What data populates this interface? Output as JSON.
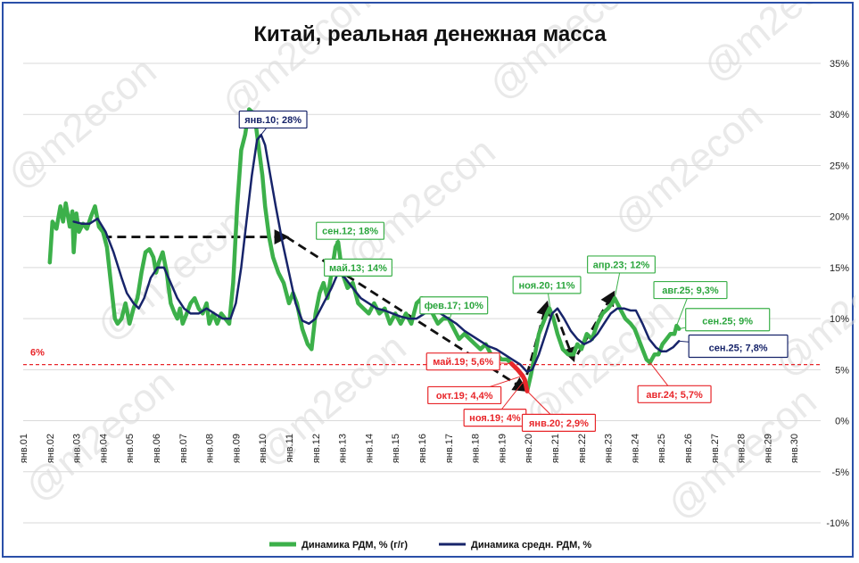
{
  "chart_data": {
    "type": "line",
    "title": "Китай, реальная денежная масса",
    "ylim": [
      -10,
      35
    ],
    "yticks": [
      35,
      30,
      25,
      20,
      15,
      10,
      5,
      0,
      -5,
      -10
    ],
    "ytick_labels": [
      "35%",
      "30%",
      "25%",
      "20%",
      "15%",
      "10%",
      "5%",
      "0%",
      "-5%",
      "-10%"
    ],
    "xlim": [
      2001.0,
      2031.0
    ],
    "xticks": [
      2001,
      2002,
      2003,
      2004,
      2005,
      2006,
      2007,
      2008,
      2009,
      2010,
      2011,
      2012,
      2013,
      2014,
      2015,
      2016,
      2017,
      2018,
      2019,
      2020,
      2021,
      2022,
      2023,
      2024,
      2025,
      2026,
      2027,
      2028,
      2029,
      2030
    ],
    "xtick_labels": [
      "янв.01",
      "янв.02",
      "янв.03",
      "янв.04",
      "янв.05",
      "янв.06",
      "янв.07",
      "янв.08",
      "янв.09",
      "янв.10",
      "янв.11",
      "янв.12",
      "янв.13",
      "янв.14",
      "янв.15",
      "янв.16",
      "янв.17",
      "янв.18",
      "янв.19",
      "янв.20",
      "янв.21",
      "янв.22",
      "янв.23",
      "янв.24",
      "янв.25",
      "янв.26",
      "янв.27",
      "янв.28",
      "янв.29",
      "янв.30"
    ],
    "threshold": {
      "value": 5.5,
      "label": "6%",
      "color": "#e8262a"
    },
    "series": [
      {
        "name": "Динамика РДМ, % (г/г)",
        "color": "#3cb04a",
        "points": [
          [
            2002.0,
            15.5
          ],
          [
            2002.1,
            19.5
          ],
          [
            2002.25,
            18.8
          ],
          [
            2002.4,
            21.0
          ],
          [
            2002.5,
            19.5
          ],
          [
            2002.6,
            21.3
          ],
          [
            2002.75,
            19.0
          ],
          [
            2002.85,
            20.5
          ],
          [
            2002.9,
            16.5
          ],
          [
            2003.0,
            20.3
          ],
          [
            2003.1,
            18.5
          ],
          [
            2003.25,
            19.3
          ],
          [
            2003.4,
            18.8
          ],
          [
            2003.55,
            20.0
          ],
          [
            2003.7,
            21.0
          ],
          [
            2003.85,
            19.0
          ],
          [
            2004.0,
            18.5
          ],
          [
            2004.15,
            17.0
          ],
          [
            2004.3,
            13.5
          ],
          [
            2004.45,
            10.0
          ],
          [
            2004.55,
            9.5
          ],
          [
            2004.7,
            10.0
          ],
          [
            2004.85,
            11.5
          ],
          [
            2005.0,
            9.5
          ],
          [
            2005.15,
            11.0
          ],
          [
            2005.3,
            12.0
          ],
          [
            2005.45,
            14.5
          ],
          [
            2005.6,
            16.5
          ],
          [
            2005.75,
            16.8
          ],
          [
            2005.9,
            16.0
          ],
          [
            2006.0,
            14.5
          ],
          [
            2006.1,
            15.5
          ],
          [
            2006.25,
            16.5
          ],
          [
            2006.4,
            14.5
          ],
          [
            2006.55,
            11.5
          ],
          [
            2006.7,
            10.5
          ],
          [
            2006.8,
            10.0
          ],
          [
            2006.9,
            11.0
          ],
          [
            2007.0,
            9.5
          ],
          [
            2007.15,
            10.5
          ],
          [
            2007.3,
            11.5
          ],
          [
            2007.45,
            12.0
          ],
          [
            2007.6,
            11.0
          ],
          [
            2007.75,
            10.5
          ],
          [
            2007.9,
            11.5
          ],
          [
            2008.0,
            9.5
          ],
          [
            2008.15,
            10.5
          ],
          [
            2008.3,
            9.5
          ],
          [
            2008.45,
            10.5
          ],
          [
            2008.6,
            10.0
          ],
          [
            2008.75,
            9.5
          ],
          [
            2008.9,
            13.5
          ],
          [
            2009.05,
            21.0
          ],
          [
            2009.2,
            26.5
          ],
          [
            2009.35,
            28.0
          ],
          [
            2009.5,
            30.5
          ],
          [
            2009.7,
            30.0
          ],
          [
            2009.85,
            27.0
          ],
          [
            2010.0,
            24.0
          ],
          [
            2010.1,
            21.0
          ],
          [
            2010.25,
            18.0
          ],
          [
            2010.4,
            16.0
          ],
          [
            2010.6,
            14.5
          ],
          [
            2010.8,
            13.5
          ],
          [
            2011.0,
            11.5
          ],
          [
            2011.15,
            12.5
          ],
          [
            2011.3,
            11.5
          ],
          [
            2011.5,
            9.0
          ],
          [
            2011.7,
            7.5
          ],
          [
            2011.85,
            7.0
          ],
          [
            2012.0,
            10.5
          ],
          [
            2012.15,
            12.5
          ],
          [
            2012.3,
            13.5
          ],
          [
            2012.45,
            12.0
          ],
          [
            2012.6,
            14.5
          ],
          [
            2012.75,
            17.0
          ],
          [
            2012.85,
            17.5
          ],
          [
            2013.0,
            14.5
          ],
          [
            2013.2,
            13.0
          ],
          [
            2013.4,
            13.5
          ],
          [
            2013.6,
            11.5
          ],
          [
            2013.8,
            11.0
          ],
          [
            2014.0,
            10.5
          ],
          [
            2014.2,
            11.5
          ],
          [
            2014.4,
            10.5
          ],
          [
            2014.6,
            11.0
          ],
          [
            2014.8,
            9.5
          ],
          [
            2015.0,
            10.5
          ],
          [
            2015.2,
            9.5
          ],
          [
            2015.4,
            10.5
          ],
          [
            2015.6,
            9.5
          ],
          [
            2015.8,
            11.5
          ],
          [
            2016.0,
            12.0
          ],
          [
            2016.2,
            11.5
          ],
          [
            2016.4,
            10.5
          ],
          [
            2016.6,
            9.5
          ],
          [
            2016.8,
            10.0
          ],
          [
            2017.0,
            10.0
          ],
          [
            2017.2,
            9.0
          ],
          [
            2017.4,
            8.0
          ],
          [
            2017.6,
            8.5
          ],
          [
            2017.8,
            8.0
          ],
          [
            2018.0,
            7.5
          ],
          [
            2018.2,
            7.0
          ],
          [
            2018.4,
            7.5
          ],
          [
            2018.6,
            6.5
          ],
          [
            2018.8,
            6.5
          ],
          [
            2019.0,
            6.0
          ],
          [
            2019.2,
            6.0
          ],
          [
            2019.37,
            5.6
          ],
          [
            2019.6,
            5.0
          ],
          [
            2019.79,
            4.4
          ],
          [
            2019.87,
            4.0
          ],
          [
            2019.96,
            2.9
          ],
          [
            2020.1,
            4.5
          ],
          [
            2020.25,
            6.5
          ],
          [
            2020.4,
            8.5
          ],
          [
            2020.55,
            9.5
          ],
          [
            2020.7,
            10.5
          ],
          [
            2020.8,
            11.0
          ],
          [
            2020.95,
            10.0
          ],
          [
            2021.1,
            8.5
          ],
          [
            2021.3,
            7.0
          ],
          [
            2021.5,
            6.5
          ],
          [
            2021.7,
            6.5
          ],
          [
            2021.85,
            7.5
          ],
          [
            2022.0,
            7.0
          ],
          [
            2022.2,
            8.5
          ],
          [
            2022.4,
            8.0
          ],
          [
            2022.6,
            9.5
          ],
          [
            2022.8,
            10.5
          ],
          [
            2023.0,
            11.0
          ],
          [
            2023.15,
            11.5
          ],
          [
            2023.25,
            12.0
          ],
          [
            2023.45,
            11.0
          ],
          [
            2023.65,
            10.0
          ],
          [
            2023.85,
            9.5
          ],
          [
            2024.0,
            9.0
          ],
          [
            2024.15,
            8.0
          ],
          [
            2024.3,
            7.0
          ],
          [
            2024.45,
            6.0
          ],
          [
            2024.58,
            5.7
          ],
          [
            2024.75,
            6.5
          ],
          [
            2024.9,
            6.5
          ],
          [
            2025.05,
            7.5
          ],
          [
            2025.2,
            8.0
          ],
          [
            2025.35,
            8.5
          ],
          [
            2025.5,
            8.5
          ],
          [
            2025.58,
            9.3
          ],
          [
            2025.67,
            9.0
          ]
        ]
      },
      {
        "name": "Динамика средн. РДМ, %",
        "color": "#17246a",
        "points": [
          [
            2002.9,
            19.5
          ],
          [
            2003.2,
            19.3
          ],
          [
            2003.5,
            19.3
          ],
          [
            2003.8,
            19.8
          ],
          [
            2004.1,
            18.5
          ],
          [
            2004.4,
            16.5
          ],
          [
            2004.7,
            14.0
          ],
          [
            2004.9,
            12.5
          ],
          [
            2005.15,
            11.5
          ],
          [
            2005.35,
            11.0
          ],
          [
            2005.55,
            12.0
          ],
          [
            2005.8,
            14.0
          ],
          [
            2006.05,
            15.0
          ],
          [
            2006.3,
            15.0
          ],
          [
            2006.55,
            13.5
          ],
          [
            2006.8,
            12.0
          ],
          [
            2007.05,
            11.0
          ],
          [
            2007.3,
            10.5
          ],
          [
            2007.6,
            10.5
          ],
          [
            2007.9,
            11.0
          ],
          [
            2008.2,
            10.5
          ],
          [
            2008.5,
            10.0
          ],
          [
            2008.8,
            10.0
          ],
          [
            2009.0,
            11.5
          ],
          [
            2009.2,
            15.0
          ],
          [
            2009.4,
            19.5
          ],
          [
            2009.6,
            24.0
          ],
          [
            2009.8,
            27.5
          ],
          [
            2009.95,
            28.0
          ],
          [
            2010.1,
            27.0
          ],
          [
            2010.3,
            24.0
          ],
          [
            2010.5,
            21.0
          ],
          [
            2010.75,
            17.5
          ],
          [
            2011.0,
            14.5
          ],
          [
            2011.25,
            11.5
          ],
          [
            2011.5,
            9.8
          ],
          [
            2011.75,
            9.5
          ],
          [
            2012.0,
            10.0
          ],
          [
            2012.3,
            11.5
          ],
          [
            2012.6,
            13.0
          ],
          [
            2012.85,
            14.5
          ],
          [
            2013.1,
            14.0
          ],
          [
            2013.4,
            13.0
          ],
          [
            2013.7,
            12.0
          ],
          [
            2014.0,
            11.5
          ],
          [
            2014.3,
            11.0
          ],
          [
            2014.6,
            10.8
          ],
          [
            2014.9,
            10.5
          ],
          [
            2015.2,
            10.2
          ],
          [
            2015.5,
            10.0
          ],
          [
            2015.8,
            10.0
          ],
          [
            2016.1,
            10.5
          ],
          [
            2016.4,
            11.0
          ],
          [
            2016.7,
            10.5
          ],
          [
            2017.0,
            10.0
          ],
          [
            2017.3,
            9.5
          ],
          [
            2017.6,
            8.8
          ],
          [
            2017.9,
            8.3
          ],
          [
            2018.2,
            7.8
          ],
          [
            2018.5,
            7.3
          ],
          [
            2018.8,
            7.0
          ],
          [
            2019.1,
            6.5
          ],
          [
            2019.4,
            6.0
          ],
          [
            2019.7,
            5.5
          ],
          [
            2019.95,
            4.8
          ],
          [
            2020.15,
            5.0
          ],
          [
            2020.4,
            6.5
          ],
          [
            2020.65,
            8.5
          ],
          [
            2020.9,
            10.5
          ],
          [
            2021.1,
            11.0
          ],
          [
            2021.35,
            10.0
          ],
          [
            2021.6,
            8.8
          ],
          [
            2021.85,
            8.0
          ],
          [
            2022.1,
            7.5
          ],
          [
            2022.35,
            7.8
          ],
          [
            2022.6,
            8.5
          ],
          [
            2022.85,
            9.5
          ],
          [
            2023.1,
            10.5
          ],
          [
            2023.35,
            11.0
          ],
          [
            2023.6,
            11.0
          ],
          [
            2023.85,
            10.8
          ],
          [
            2024.05,
            10.8
          ],
          [
            2024.3,
            9.5
          ],
          [
            2024.55,
            8.0
          ],
          [
            2024.8,
            7.2
          ],
          [
            2025.0,
            6.8
          ],
          [
            2025.2,
            6.8
          ],
          [
            2025.45,
            7.2
          ],
          [
            2025.67,
            7.8
          ]
        ]
      }
    ],
    "trend_arrows": [
      {
        "from": [
          2004.0,
          18.0
        ],
        "to": [
          2010.9,
          18.0
        ]
      },
      {
        "from": [
          2010.9,
          18.0
        ],
        "to": [
          2019.9,
          3.0
        ]
      },
      {
        "from": [
          2019.95,
          4.5
        ],
        "to": [
          2020.7,
          11.5
        ]
      },
      {
        "from": [
          2021.05,
          10.5
        ],
        "to": [
          2021.7,
          6.0
        ]
      },
      {
        "from": [
          2021.85,
          6.5
        ],
        "to": [
          2023.2,
          12.5
        ]
      }
    ],
    "annotations": [
      {
        "text": "янв.10; 28%",
        "style": "navy",
        "x": 2009.95,
        "y": 28.0,
        "lx": 2010.4,
        "ly": 29.5
      },
      {
        "text": "сен.12; 18%",
        "style": "green",
        "x": 2012.75,
        "y": 17.5,
        "lx": 2013.3,
        "ly": 18.6
      },
      {
        "text": "май.13; 14%",
        "style": "green",
        "x": 2013.3,
        "y": 14.0,
        "lx": 2013.6,
        "ly": 15.0
      },
      {
        "text": "фев.17; 10%",
        "style": "green",
        "x": 2017.05,
        "y": 10.0,
        "lx": 2017.2,
        "ly": 11.3
      },
      {
        "text": "ноя.20; 11%",
        "style": "green",
        "x": 2020.83,
        "y": 11.0,
        "lx": 2020.7,
        "ly": 13.3
      },
      {
        "text": "апр.23; 12%",
        "style": "green",
        "x": 2023.25,
        "y": 12.0,
        "lx": 2023.5,
        "ly": 15.3
      },
      {
        "text": "авг.25; 9,3%",
        "style": "green",
        "x": 2025.58,
        "y": 9.3,
        "lx": 2026.1,
        "ly": 12.8
      },
      {
        "text": "сен.25; 9%",
        "style": "green-big",
        "x": 2025.67,
        "y": 9.0,
        "lx": 2027.5,
        "ly": 9.9
      },
      {
        "text": "сен.25; 7,8%",
        "style": "navy-big",
        "x": 2025.67,
        "y": 7.8,
        "lx": 2027.9,
        "ly": 7.3
      },
      {
        "text": "май.19; 5,6%",
        "style": "red",
        "x": 2019.37,
        "y": 5.6,
        "lx": 2017.55,
        "ly": 5.8
      },
      {
        "text": "окт.19; 4,4%",
        "style": "red",
        "x": 2019.79,
        "y": 4.4,
        "lx": 2017.6,
        "ly": 2.5
      },
      {
        "text": "ноя.19; 4%",
        "style": "red",
        "x": 2019.87,
        "y": 4.0,
        "lx": 2018.75,
        "ly": 0.3
      },
      {
        "text": "янв.20; 2,9%",
        "style": "red",
        "x": 2019.96,
        "y": 2.9,
        "lx": 2021.15,
        "ly": -0.2
      },
      {
        "text": "авг.24; 5,7%",
        "style": "red",
        "x": 2024.58,
        "y": 5.7,
        "lx": 2025.5,
        "ly": 2.6
      }
    ],
    "legend": {
      "position": "bottom",
      "entries": [
        {
          "label": "Динамика РДМ, % (г/г)",
          "color": "#3cb04a"
        },
        {
          "label": "Динамика средн. РДМ, %",
          "color": "#17246a"
        }
      ]
    },
    "watermark": "@m2econ",
    "grid": "horizontal"
  }
}
